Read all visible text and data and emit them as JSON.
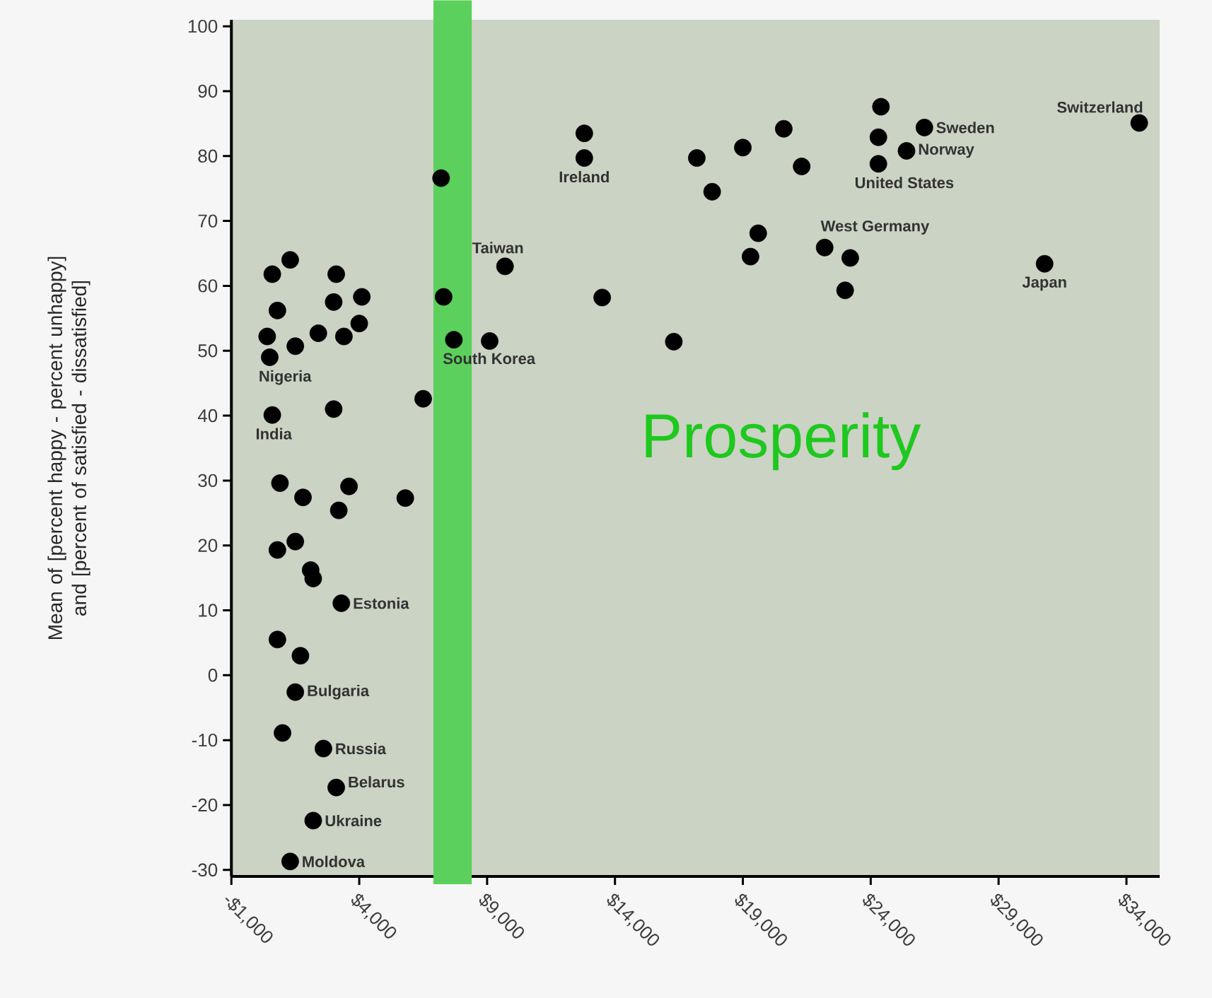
{
  "chart_data": {
    "type": "scatter",
    "ylabel": "Mean of [percent happy - percent unhappy] and [percent of satisfied - dissatisfied]",
    "x": [
      1300,
      600,
      3100,
      800,
      3000,
      4100,
      400,
      1500,
      2400,
      3400,
      4000,
      500,
      600,
      3000,
      6500,
      7200,
      7300,
      7700,
      9100,
      9700,
      900,
      1800,
      3600,
      3200,
      5800,
      800,
      1500,
      2100,
      2200,
      3300,
      800,
      1700,
      1500,
      1000,
      2600,
      3100,
      2200,
      1300,
      12800,
      12800,
      17200,
      17800,
      19000,
      20600,
      21300,
      19600,
      19300,
      22200,
      23200,
      23000,
      24400,
      24300,
      24300,
      25400,
      26100,
      34500,
      30800,
      13500,
      16300
    ],
    "series": [
      {
        "color": "#000000",
        "values": [
          64.0,
          61.8,
          61.8,
          56.2,
          57.5,
          58.3,
          52.2,
          50.7,
          52.7,
          52.2,
          54.2,
          49.0,
          40.1,
          41.0,
          42.6,
          76.6,
          58.3,
          51.7,
          51.5,
          63.0,
          29.6,
          27.4,
          29.1,
          25.4,
          27.3,
          19.3,
          20.6,
          16.2,
          14.9,
          11.1,
          5.5,
          3.0,
          -2.6,
          -8.9,
          -11.3,
          -17.3,
          -22.4,
          -28.7,
          83.5,
          79.7,
          79.7,
          74.5,
          81.3,
          84.2,
          78.4,
          68.1,
          64.5,
          65.9,
          64.3,
          59.3,
          87.6,
          82.9,
          78.8,
          80.8,
          84.4,
          85.1,
          63.4,
          58.2,
          51.4
        ]
      }
    ],
    "marker": "circle",
    "xlim": [
      -1000,
      35300
    ],
    "ylim": [
      -31,
      101
    ],
    "xticks": [
      {
        "value": -1000,
        "label": "-$1,000"
      },
      {
        "value": 4000,
        "label": "$4,000"
      },
      {
        "value": 9000,
        "label": "$9,000"
      },
      {
        "value": 14000,
        "label": "$14,000"
      },
      {
        "value": 19000,
        "label": "$19,000"
      },
      {
        "value": 24000,
        "label": "$24,000"
      },
      {
        "value": 29000,
        "label": "$29,000"
      },
      {
        "value": 34000,
        "label": "$34,000"
      }
    ],
    "yticks": [
      -30,
      -20,
      -10,
      0,
      10,
      20,
      30,
      40,
      50,
      60,
      70,
      80,
      90,
      100
    ],
    "bands": [
      {
        "axis": "x",
        "from": 6900,
        "to": 8400,
        "color": "#5cd05c"
      }
    ],
    "annotations": [
      {
        "text": "Switzerland",
        "x": 34500,
        "y": 85.1
      },
      {
        "text": "Sweden",
        "x": 26100,
        "y": 84.4
      },
      {
        "text": "Norway",
        "x": 25400,
        "y": 80.8
      },
      {
        "text": "United States",
        "x": 24300,
        "y": 78.8
      },
      {
        "text": "Ireland",
        "x": 12800,
        "y": 79.7
      },
      {
        "text": "West Germany",
        "x": 22200,
        "y": 65.9
      },
      {
        "text": "Japan",
        "x": 30800,
        "y": 63.4
      },
      {
        "text": "Taiwan",
        "x": 9700,
        "y": 63.0
      },
      {
        "text": "South Korea",
        "x": 7700,
        "y": 51.7
      },
      {
        "text": "Nigeria",
        "x": 500,
        "y": 49.0
      },
      {
        "text": "India",
        "x": 600,
        "y": 40.1
      },
      {
        "text": "Estonia",
        "x": 3300,
        "y": 11.1
      },
      {
        "text": "Bulgaria",
        "x": 1500,
        "y": -2.6
      },
      {
        "text": "Russia",
        "x": 2600,
        "y": -11.3
      },
      {
        "text": "Belarus",
        "x": 3100,
        "y": -17.3
      },
      {
        "text": "Ukraine",
        "x": 2200,
        "y": -22.4
      },
      {
        "text": "Moldova",
        "x": 1300,
        "y": -28.7
      },
      "Prosperity"
    ],
    "grid": false
  }
}
